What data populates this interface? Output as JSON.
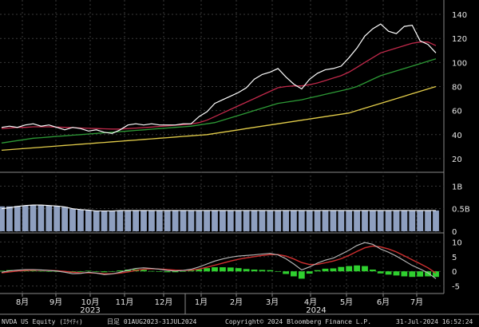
{
  "chart_data": {
    "type": "line",
    "ticker": "NVDA US Equity",
    "months": [
      {
        "label": "8月"
      },
      {
        "label": "9月"
      },
      {
        "label": "10月"
      },
      {
        "label": "11月"
      },
      {
        "label": "12月"
      },
      {
        "label": "1月"
      },
      {
        "label": "2月"
      },
      {
        "label": "3月"
      },
      {
        "label": "4月"
      },
      {
        "label": "5月"
      },
      {
        "label": "6月"
      },
      {
        "label": "7月"
      }
    ],
    "years": [
      {
        "label": "2023"
      },
      {
        "label": "2024"
      }
    ],
    "price_panel": {
      "yticks": [
        {
          "label": "20",
          "value": 20
        },
        {
          "label": "40",
          "value": 40
        },
        {
          "label": "60",
          "value": 60
        },
        {
          "label": "80",
          "value": 80
        },
        {
          "label": "100",
          "value": 100
        },
        {
          "label": "120",
          "value": 120
        },
        {
          "label": "140",
          "value": 140
        }
      ],
      "ylim": [
        10,
        148
      ],
      "series": [
        {
          "color": "#ffffff",
          "values": [
            46,
            47,
            46,
            48,
            49,
            47,
            48,
            46,
            44,
            46,
            45,
            43,
            44,
            42,
            41,
            44,
            48,
            49,
            48,
            49,
            48,
            48,
            48,
            49,
            49,
            55,
            59,
            66,
            69,
            72,
            75,
            79,
            86,
            90,
            92,
            95,
            88,
            82,
            78,
            86,
            91,
            94,
            95,
            97,
            104,
            112,
            122,
            128,
            132,
            126,
            124,
            130,
            131,
            118,
            115,
            108
          ]
        },
        {
          "color": "#c0294a",
          "values": [
            45,
            45.5,
            46,
            46,
            46.5,
            46.5,
            46.5,
            46.3,
            46,
            45.8,
            45.5,
            45.2,
            45,
            44.8,
            44.6,
            44.6,
            45,
            45.4,
            45.8,
            46.3,
            46.8,
            47.3,
            47.8,
            48.3,
            48.8,
            50,
            52,
            55,
            58,
            61,
            64,
            67,
            70,
            73,
            76,
            79,
            80,
            80.5,
            80.5,
            81.5,
            83,
            85,
            87,
            89,
            92,
            96,
            100,
            104,
            108,
            110,
            112,
            114,
            116,
            117,
            117,
            114
          ]
        },
        {
          "color": "#2d9a36",
          "values": [
            33,
            34,
            35,
            36,
            37,
            37.5,
            38,
            38.5,
            39,
            39.5,
            40,
            40.5,
            41,
            41.5,
            42,
            42.5,
            43,
            43.5,
            44,
            44.5,
            45,
            45.5,
            46,
            46.5,
            47,
            48,
            49,
            50,
            52,
            54,
            56,
            58,
            60,
            62,
            64,
            66,
            67,
            68,
            69,
            70.5,
            72,
            73.5,
            75,
            76.5,
            78,
            80,
            83,
            86,
            89,
            91,
            93,
            95,
            97,
            99,
            101,
            103
          ]
        },
        {
          "color": "#e3cd4a",
          "values": [
            27,
            27.5,
            28,
            28.5,
            29,
            29.5,
            30,
            30.5,
            31,
            31.5,
            32,
            32.5,
            33,
            33.5,
            34,
            34.5,
            35,
            35.5,
            36,
            36.5,
            37,
            37.5,
            38,
            38.5,
            39,
            39.5,
            40,
            41,
            42,
            43,
            44,
            45,
            46,
            47,
            48,
            49,
            50,
            51,
            52,
            53,
            54,
            55,
            56,
            57,
            58,
            60,
            62,
            64,
            66,
            68,
            70,
            72,
            74,
            76,
            78,
            80
          ]
        }
      ]
    },
    "volume_panel": {
      "yticks": [
        {
          "label": "1B",
          "value": 1.0
        },
        {
          "label": "0.5B",
          "value": 0.5
        },
        {
          "label": "0",
          "value": 0
        }
      ],
      "ylim": [
        0,
        1.2
      ],
      "bars": [
        0.55,
        0.55,
        0.56,
        0.57,
        0.58,
        0.58,
        0.57,
        0.56,
        0.54,
        0.5,
        0.48,
        0.47,
        0.45,
        0.45,
        0.45,
        0.46,
        0.46,
        0.46,
        0.46,
        0.46,
        0.46,
        0.46,
        0.46,
        0.46,
        0.46,
        0.46,
        0.46,
        0.46,
        0.46,
        0.46,
        0.46,
        0.46,
        0.46,
        0.46,
        0.46,
        0.46,
        0.46,
        0.46,
        0.46,
        0.46,
        0.46,
        0.46,
        0.46,
        0.46,
        0.46,
        0.46,
        0.46,
        0.46,
        0.46,
        0.46,
        0.46,
        0.46,
        0.46,
        0.46,
        0.46,
        0.46
      ],
      "avg": [
        0.5,
        0.52,
        0.55,
        0.57,
        0.58,
        0.58,
        0.57,
        0.56,
        0.54,
        0.5,
        0.48,
        0.47,
        0.45,
        0.45,
        0.45,
        0.46,
        0.46,
        0.46,
        0.46,
        0.46,
        0.46,
        0.46,
        0.46,
        0.46,
        0.46,
        0.46,
        0.46,
        0.46,
        0.46,
        0.46,
        0.46,
        0.46,
        0.46,
        0.46,
        0.46,
        0.46,
        0.46,
        0.46,
        0.46,
        0.46,
        0.46,
        0.46,
        0.46,
        0.46,
        0.46,
        0.46,
        0.46,
        0.46,
        0.46,
        0.46,
        0.46,
        0.46,
        0.46,
        0.46,
        0.46,
        0.46
      ]
    },
    "indicator_panel": {
      "yticks": [
        {
          "label": "10",
          "value": 10
        },
        {
          "label": "5",
          "value": 5
        },
        {
          "label": "0",
          "value": 0
        },
        {
          "label": "-5",
          "value": -5
        }
      ],
      "ylim": [
        -7,
        12
      ],
      "macd": [
        -0.3,
        0.2,
        0.4,
        0.6,
        0.6,
        0.5,
        0.3,
        0.1,
        -0.3,
        -0.8,
        -0.7,
        -0.3,
        -0.6,
        -1.1,
        -0.9,
        -0.3,
        0.4,
        1.0,
        1.2,
        1.0,
        0.7,
        0.3,
        0.1,
        0.3,
        0.7,
        1.5,
        2.5,
        3.5,
        4.2,
        4.8,
        5.2,
        5.4,
        5.6,
        5.9,
        6.1,
        5.6,
        4.3,
        2.5,
        0.5,
        1.5,
        2.8,
        3.8,
        4.5,
        5.8,
        7.2,
        8.8,
        9.8,
        9.2,
        7.6,
        6.5,
        5.2,
        3.6,
        2.0,
        0.8,
        -0.5,
        -2.5
      ],
      "signal": [
        -0.5,
        -0.2,
        0.1,
        0.3,
        0.4,
        0.4,
        0.3,
        0.2,
        0.0,
        -0.3,
        -0.5,
        -0.5,
        -0.6,
        -0.8,
        -0.8,
        -0.6,
        -0.2,
        0.3,
        0.7,
        0.9,
        0.8,
        0.6,
        0.4,
        0.3,
        0.4,
        0.8,
        1.4,
        2.1,
        2.8,
        3.5,
        4.1,
        4.6,
        5.0,
        5.4,
        5.7,
        5.7,
        5.2,
        4.2,
        3.0,
        2.3,
        2.4,
        2.9,
        3.5,
        4.3,
        5.4,
        6.8,
        8.0,
        8.6,
        8.3,
        7.6,
        6.6,
        5.3,
        3.9,
        2.6,
        1.2,
        -0.6
      ],
      "histogram": [
        0.2,
        0.4,
        0.3,
        0.3,
        0.2,
        0.1,
        0.0,
        -0.1,
        -0.3,
        -0.5,
        -0.2,
        0.2,
        0.0,
        -0.3,
        -0.1,
        0.3,
        0.6,
        0.7,
        0.5,
        0.1,
        -0.1,
        -0.3,
        -0.3,
        0.0,
        0.3,
        0.7,
        1.1,
        1.4,
        1.4,
        1.3,
        1.1,
        0.8,
        0.6,
        0.5,
        0.4,
        -0.1,
        -0.9,
        -1.7,
        -2.5,
        -0.8,
        0.4,
        0.9,
        1.0,
        1.5,
        1.8,
        2.0,
        1.8,
        0.6,
        -0.7,
        -1.1,
        -1.4,
        -1.7,
        -1.9,
        -1.8,
        -1.7,
        -1.9
      ]
    }
  },
  "footer": {
    "left": "NVDA US Equity (ｴｸｲﾃｨ)",
    "range": "日足 01AUG2023-31JUL2024",
    "copyright": "Copyright© 2024 Bloomberg Finance L.P.",
    "timestamp": "31-Jul-2024 16:52:24"
  }
}
